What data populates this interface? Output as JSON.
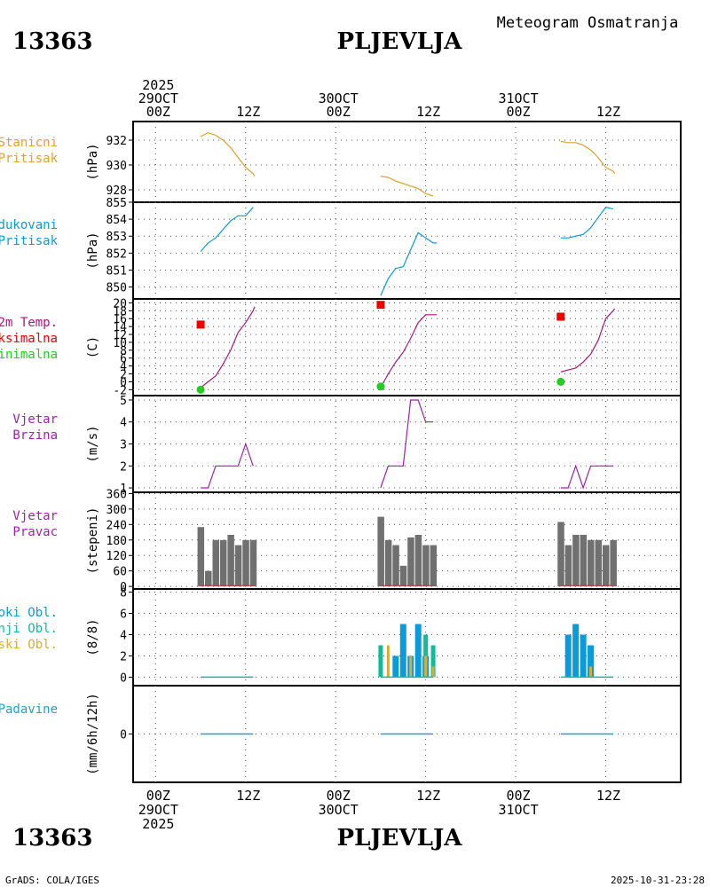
{
  "header": {
    "station_id": "13363",
    "station_name": "PLJEVLJA",
    "subtitle": "Meteogram Osmatranja"
  },
  "footer": {
    "station_id": "13363",
    "station_name": "PLJEVLJA",
    "credit": "GrADS: COLA/IGES",
    "timestamp": "2025-10-31-23:28"
  },
  "colors": {
    "pressure": "#e0a030",
    "reduced_pressure": "#0a9bd8",
    "temperature": "#b0147a",
    "tmax": "#ee0000",
    "tmin": "#22cc22",
    "wind": "#a020b0",
    "bars": "#707070",
    "cloud_high": "#0a9bd8",
    "cloud_mid": "#11bb99",
    "cloud_low": "#ddaa33",
    "precip": "#22a0c8"
  },
  "time_axis": {
    "top_labels": [
      {
        "h": 0,
        "lines": [
          "2025",
          "29OCT",
          "00Z"
        ]
      },
      {
        "h": 12,
        "lines": [
          "12Z"
        ]
      },
      {
        "h": 24,
        "lines": [
          "30OCT",
          "00Z"
        ]
      },
      {
        "h": 36,
        "lines": [
          "12Z"
        ]
      },
      {
        "h": 48,
        "lines": [
          "31OCT",
          "00Z"
        ]
      },
      {
        "h": 60,
        "lines": [
          "12Z"
        ]
      }
    ],
    "bottom_labels": [
      {
        "h": 0,
        "lines": [
          "00Z",
          "29OCT",
          "2025"
        ]
      },
      {
        "h": 12,
        "lines": [
          "12Z"
        ]
      },
      {
        "h": 24,
        "lines": [
          "00Z",
          "30OCT"
        ]
      },
      {
        "h": 36,
        "lines": [
          "12Z"
        ]
      },
      {
        "h": 48,
        "lines": [
          "00Z",
          "31OCT"
        ]
      },
      {
        "h": 60,
        "lines": [
          "12Z"
        ]
      }
    ],
    "range_hours": [
      -3,
      70
    ]
  },
  "chart_data": [
    {
      "type": "line",
      "panel": "station-pressure",
      "labels": [
        "Stanicni",
        "Pritisak"
      ],
      "ylabel": "(hPa)",
      "ylim": [
        927,
        933.5
      ],
      "yticks": [
        928,
        930,
        932
      ],
      "grid": true,
      "series": [
        {
          "name": "Stanicni Pritisak",
          "segments": [
            [
              [
                6,
                932.3
              ],
              [
                7,
                932.6
              ],
              [
                8,
                932.4
              ],
              [
                9,
                932.0
              ],
              [
                10,
                931.4
              ],
              [
                11,
                930.6
              ],
              [
                12,
                929.8
              ],
              [
                13,
                929.3
              ],
              [
                13.2,
                929.1
              ]
            ],
            [
              [
                30,
                929.1
              ],
              [
                31,
                929.0
              ],
              [
                32,
                928.7
              ],
              [
                33,
                928.5
              ],
              [
                34,
                928.3
              ],
              [
                35,
                928.1
              ],
              [
                36,
                927.7
              ],
              [
                37,
                927.5
              ]
            ],
            [
              [
                54,
                931.9
              ],
              [
                55,
                931.8
              ],
              [
                56,
                931.8
              ],
              [
                57,
                931.6
              ],
              [
                58,
                931.2
              ],
              [
                59,
                930.6
              ],
              [
                60,
                929.8
              ],
              [
                61,
                929.5
              ],
              [
                61.2,
                929.3
              ]
            ]
          ]
        }
      ]
    },
    {
      "type": "line",
      "panel": "reduced-pressure",
      "labels": [
        "Redukovani",
        "Pritisak"
      ],
      "ylabel": "(hPa)",
      "ylim": [
        849.3,
        855
      ],
      "yticks": [
        850,
        851,
        852,
        853,
        854,
        855
      ],
      "ytick_labels": [
        "850",
        "851",
        "852",
        "853",
        "854",
        "855"
      ],
      "grid": true,
      "series": [
        {
          "name": "Redukovani Pritisak",
          "segments": [
            [
              [
                6,
                852.1
              ],
              [
                7,
                852.6
              ],
              [
                8,
                852.9
              ],
              [
                9,
                853.4
              ],
              [
                10,
                853.9
              ],
              [
                11,
                854.2
              ],
              [
                12,
                854.2
              ],
              [
                13,
                854.7
              ]
            ],
            [
              [
                30,
                849.5
              ],
              [
                31,
                850.5
              ],
              [
                32,
                851.1
              ],
              [
                33,
                851.2
              ],
              [
                34,
                852.2
              ],
              [
                35,
                853.2
              ],
              [
                36,
                852.9
              ],
              [
                37,
                852.6
              ],
              [
                37.5,
                852.6
              ]
            ],
            [
              [
                54,
                852.9
              ],
              [
                55,
                852.9
              ],
              [
                56,
                853.0
              ],
              [
                57,
                853.1
              ],
              [
                58,
                853.5
              ],
              [
                59,
                854.1
              ],
              [
                60,
                854.7
              ],
              [
                61,
                854.6
              ]
            ]
          ]
        }
      ]
    },
    {
      "type": "line",
      "panel": "temperature",
      "labels": [
        "2m Temp.",
        "Maksimalna",
        "Minimalna"
      ],
      "ylabel": "(C)",
      "ylim": [
        -3.5,
        21
      ],
      "yticks": [
        -2,
        0,
        2,
        4,
        6,
        8,
        10,
        12,
        14,
        16,
        18,
        20
      ],
      "grid": true,
      "series": [
        {
          "name": "2m Temp.",
          "segments": [
            [
              [
                6,
                -1.5
              ],
              [
                7,
                0
              ],
              [
                8,
                1.5
              ],
              [
                9,
                4.5
              ],
              [
                10,
                8
              ],
              [
                11,
                12.5
              ],
              [
                12,
                15
              ],
              [
                13,
                18
              ],
              [
                13.2,
                19
              ]
            ],
            [
              [
                30,
                -1.5
              ],
              [
                31,
                2
              ],
              [
                32,
                5
              ],
              [
                33,
                7.5
              ],
              [
                34,
                11
              ],
              [
                35,
                15
              ],
              [
                36,
                17
              ],
              [
                37,
                17
              ],
              [
                37.5,
                17
              ]
            ],
            [
              [
                54,
                2.5
              ],
              [
                55,
                3
              ],
              [
                56,
                3.5
              ],
              [
                57,
                5
              ],
              [
                58,
                7
              ],
              [
                59,
                10.5
              ],
              [
                60,
                16
              ],
              [
                61,
                18
              ],
              [
                61.2,
                18.5
              ]
            ]
          ]
        },
        {
          "name": "Maksimalna",
          "points": [
            [
              6,
              14.5
            ],
            [
              30,
              19.5
            ],
            [
              54,
              16.5
            ]
          ]
        },
        {
          "name": "Minimalna",
          "points": [
            [
              6,
              -2
            ],
            [
              30,
              -1.2
            ],
            [
              54,
              0
            ]
          ]
        }
      ]
    },
    {
      "type": "line",
      "panel": "wind-speed",
      "labels": [
        "Vjetar",
        "Brzina"
      ],
      "ylabel": "(m/s)",
      "ylim": [
        0.8,
        5.2
      ],
      "yticks": [
        1,
        2,
        3,
        4,
        5
      ],
      "grid": true,
      "series": [
        {
          "name": "Vjetar Brzina",
          "segments": [
            [
              [
                6,
                1
              ],
              [
                7,
                1
              ],
              [
                8,
                2
              ],
              [
                9,
                2
              ],
              [
                10,
                2
              ],
              [
                11,
                2
              ],
              [
                12,
                3
              ],
              [
                13,
                2
              ]
            ],
            [
              [
                30,
                1
              ],
              [
                31,
                2
              ],
              [
                32,
                2
              ],
              [
                33,
                2
              ],
              [
                34,
                5
              ],
              [
                35,
                5
              ],
              [
                36,
                4
              ],
              [
                37,
                4
              ]
            ],
            [
              [
                54,
                1
              ],
              [
                55,
                1
              ],
              [
                56,
                2
              ],
              [
                57,
                1
              ],
              [
                58,
                2
              ],
              [
                59,
                2
              ],
              [
                60,
                2
              ],
              [
                61,
                2
              ]
            ]
          ]
        }
      ]
    },
    {
      "type": "bar",
      "panel": "wind-direction",
      "labels": [
        "Vjetar",
        "Pravac"
      ],
      "ylabel": "(stepeni)",
      "ylim": [
        -10,
        365
      ],
      "yticks": [
        0,
        60,
        120,
        180,
        240,
        300,
        360
      ],
      "grid": true,
      "series": [
        {
          "name": "Vjetar Pravac",
          "points": [
            [
              6,
              230
            ],
            [
              7,
              60
            ],
            [
              8,
              180
            ],
            [
              9,
              180
            ],
            [
              10,
              200
            ],
            [
              11,
              160
            ],
            [
              12,
              180
            ],
            [
              13,
              180
            ],
            [
              30,
              270
            ],
            [
              31,
              180
            ],
            [
              32,
              160
            ],
            [
              33,
              80
            ],
            [
              34,
              190
            ],
            [
              35,
              200
            ],
            [
              36,
              160
            ],
            [
              37,
              160
            ],
            [
              54,
              250
            ],
            [
              55,
              160
            ],
            [
              56,
              200
            ],
            [
              57,
              200
            ],
            [
              58,
              180
            ],
            [
              59,
              180
            ],
            [
              60,
              160
            ],
            [
              61,
              180
            ]
          ]
        }
      ]
    },
    {
      "type": "bar",
      "panel": "clouds",
      "labels": [
        "Visoki Obl.",
        "Srednji Obl.",
        "Niski Obl."
      ],
      "ylabel": "(8/8)",
      "ylim": [
        -0.8,
        8.3
      ],
      "yticks": [
        0,
        2,
        4,
        6,
        8
      ],
      "grid": true,
      "series": [
        {
          "name": "Visoki Obl.",
          "points": [
            [
              31,
              0
            ],
            [
              32,
              2
            ],
            [
              33,
              5
            ],
            [
              34,
              2
            ],
            [
              35,
              5
            ],
            [
              36,
              2
            ],
            [
              37,
              0
            ],
            [
              55,
              4
            ],
            [
              56,
              5
            ],
            [
              57,
              4
            ],
            [
              58,
              3
            ]
          ]
        },
        {
          "name": "Srednji Obl.",
          "points": [
            [
              30,
              3
            ],
            [
              31,
              0
            ],
            [
              32,
              0
            ],
            [
              33,
              0
            ],
            [
              34,
              0
            ],
            [
              35,
              0
            ],
            [
              36,
              4
            ],
            [
              37,
              3
            ],
            [
              58,
              0
            ]
          ]
        },
        {
          "name": "Niski Obl.",
          "points": [
            [
              31,
              3
            ],
            [
              33,
              0
            ],
            [
              34,
              2
            ],
            [
              36,
              2
            ],
            [
              37,
              1
            ],
            [
              58,
              1
            ]
          ]
        }
      ]
    },
    {
      "type": "bar",
      "panel": "precipitation",
      "labels": [
        "Padavine"
      ],
      "ylabel": "(mm/6h/12h)",
      "ylim": [
        -1,
        1
      ],
      "yticks": [
        0
      ],
      "grid": true,
      "series": [
        {
          "name": "Padavine",
          "points": [
            [
              6,
              0
            ],
            [
              9,
              0
            ],
            [
              12,
              0
            ],
            [
              30,
              0
            ],
            [
              33,
              0
            ],
            [
              36,
              0
            ],
            [
              54,
              0
            ],
            [
              57,
              0
            ],
            [
              60,
              0
            ]
          ]
        }
      ]
    }
  ]
}
